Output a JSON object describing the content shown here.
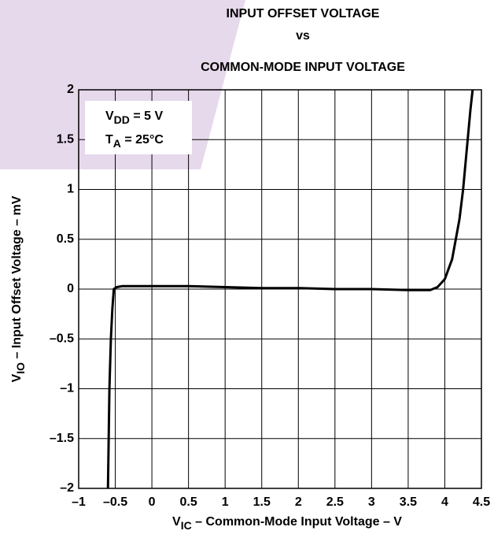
{
  "chart_data": {
    "type": "line",
    "title": [
      "INPUT OFFSET VOLTAGE",
      "vs",
      "COMMON-MODE INPUT VOLTAGE"
    ],
    "xlabel": {
      "symbol": "V",
      "subscript": "IC",
      "text": " – Common-Mode Input Voltage – V"
    },
    "ylabel": {
      "symbol": "V",
      "subscript": "IO",
      "text": " – Input Offset Voltage – mV"
    },
    "annotations": [
      {
        "symbol": "V",
        "subscript": "DD",
        "text": " = 5 V"
      },
      {
        "symbol": "T",
        "subscript": "A",
        "text": " = 25°C"
      }
    ],
    "x": [
      -0.6,
      -0.58,
      -0.56,
      -0.54,
      -0.52,
      -0.48,
      -0.4,
      0,
      0.5,
      1,
      1.5,
      2,
      2.5,
      3,
      3.5,
      3.8,
      3.9,
      4,
      4.1,
      4.2,
      4.25,
      4.3,
      4.35,
      4.38
    ],
    "series": [
      {
        "color": "#000000",
        "values": [
          -2,
          -1,
          -0.5,
          -0.2,
          0,
          0.02,
          0.03,
          0.03,
          0.03,
          0.02,
          0.01,
          0.01,
          0,
          0,
          -0.01,
          -0.01,
          0.02,
          0.1,
          0.3,
          0.7,
          1.0,
          1.4,
          1.8,
          2
        ]
      }
    ],
    "xlim": [
      -1,
      4.5
    ],
    "ylim": [
      -2,
      2
    ],
    "xticks": [
      {
        "value": -1,
        "label": "–1"
      },
      {
        "value": -0.5,
        "label": "–0.5"
      },
      0,
      0.5,
      1,
      1.5,
      2,
      2.5,
      3,
      3.5,
      4,
      4.5
    ],
    "yticks": [
      {
        "value": -2,
        "label": "–2"
      },
      {
        "value": -1.5,
        "label": "–1.5"
      },
      {
        "value": -1,
        "label": "–1"
      },
      {
        "value": -0.5,
        "label": "–0.5"
      },
      0,
      0.5,
      1,
      1.5,
      2
    ],
    "grid": true
  }
}
